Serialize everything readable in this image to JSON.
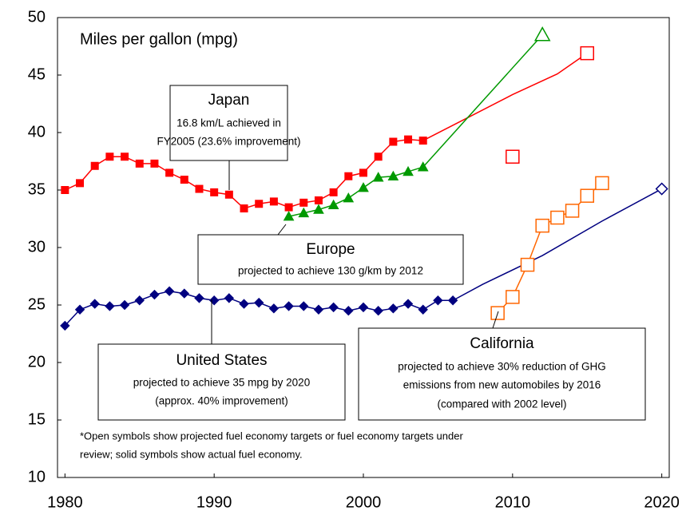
{
  "chart_data": {
    "type": "line",
    "ylabel": "Miles per gallon (mpg)",
    "xlim": [
      1979.5,
      2020.5
    ],
    "xticks": [
      1980,
      1990,
      2000,
      2010,
      2020
    ],
    "ylim": [
      10,
      50
    ],
    "yticks": [
      10,
      15,
      20,
      25,
      30,
      35,
      40,
      45,
      50
    ],
    "series": [
      {
        "color": "#ff0000",
        "marker": "square",
        "filled": true,
        "line": true,
        "x": [
          1980,
          1981,
          1982,
          1983,
          1984,
          1985,
          1986,
          1987,
          1988,
          1989,
          1990,
          1991,
          1992,
          1993,
          1994,
          1995,
          1996,
          1997,
          1998,
          1999,
          2000,
          2001,
          2002,
          2003,
          2004
        ],
        "values": [
          35.0,
          35.6,
          37.1,
          37.9,
          37.9,
          37.3,
          37.3,
          36.5,
          35.9,
          35.1,
          34.8,
          34.6,
          33.4,
          33.8,
          34.0,
          33.5,
          33.9,
          34.1,
          34.8,
          36.2,
          36.5,
          37.9,
          39.2,
          39.4,
          39.3
        ]
      },
      {
        "color": "#ff0000",
        "marker": "none",
        "filled": false,
        "line": true,
        "x": [
          2004,
          2007,
          2010,
          2013,
          2015
        ],
        "values": [
          39.3,
          41.3,
          43.3,
          45.1,
          46.9
        ]
      },
      {
        "color": "#ff0000",
        "marker": "square",
        "filled": false,
        "line": false,
        "x": [
          2010,
          2015
        ],
        "values": [
          37.9,
          46.9
        ]
      },
      {
        "color": "#009900",
        "marker": "triangle",
        "filled": true,
        "line": true,
        "x": [
          1995,
          1996,
          1997,
          1998,
          1999,
          2000,
          2001,
          2002,
          2003,
          2004
        ],
        "values": [
          32.7,
          33.0,
          33.3,
          33.7,
          34.3,
          35.2,
          36.1,
          36.2,
          36.6,
          37.0
        ]
      },
      {
        "color": "#009900",
        "marker": "none",
        "filled": false,
        "line": true,
        "x": [
          2004,
          2012
        ],
        "values": [
          37.0,
          48.5
        ]
      },
      {
        "color": "#009900",
        "marker": "triangle",
        "filled": false,
        "line": false,
        "x": [
          2012
        ],
        "values": [
          48.5
        ]
      },
      {
        "color": "#000080",
        "marker": "diamond",
        "filled": true,
        "line": true,
        "x": [
          1980,
          1981,
          1982,
          1983,
          1984,
          1985,
          1986,
          1987,
          1988,
          1989,
          1990,
          1991,
          1992,
          1993,
          1994,
          1995,
          1996,
          1997,
          1998,
          1999,
          2000,
          2001,
          2002,
          2003,
          2004,
          2005,
          2006
        ],
        "values": [
          23.2,
          24.6,
          25.1,
          24.9,
          25.0,
          25.4,
          25.9,
          26.2,
          26.0,
          25.6,
          25.4,
          25.6,
          25.1,
          25.2,
          24.7,
          24.9,
          24.9,
          24.6,
          24.8,
          24.5,
          24.8,
          24.5,
          24.7,
          25.1,
          24.6,
          25.4,
          25.4
        ]
      },
      {
        "color": "#000080",
        "marker": "none",
        "filled": false,
        "line": true,
        "x": [
          2006,
          2008,
          2012,
          2016,
          2020
        ],
        "values": [
          25.4,
          26.8,
          29.3,
          32.3,
          35.1
        ]
      },
      {
        "color": "#000080",
        "marker": "diamond",
        "filled": false,
        "line": false,
        "x": [
          2020
        ],
        "values": [
          35.1
        ]
      },
      {
        "color": "#ff6600",
        "marker": "square",
        "filled": false,
        "line": true,
        "x": [
          2009,
          2010,
          2011,
          2012,
          2013,
          2014,
          2015,
          2016
        ],
        "values": [
          24.3,
          25.7,
          28.5,
          31.9,
          32.6,
          33.2,
          34.5,
          35.6
        ]
      }
    ],
    "annotations": [
      {
        "title": "Japan",
        "lines": [
          "16.8 km/L achieved in",
          "FY2005 (23.6% improvement)"
        ]
      },
      {
        "title": "Europe",
        "lines": [
          "projected to achieve 130 g/km by 2012"
        ]
      },
      {
        "title": "United States",
        "lines": [
          "projected to achieve 35 mpg by 2020",
          "(approx. 40% improvement)"
        ]
      },
      {
        "title": "California",
        "lines": [
          "projected to achieve 30% reduction of GHG",
          "emissions from new automobiles by 2016",
          "(compared with 2002 level)"
        ]
      }
    ],
    "footnote": [
      "*Open symbols show projected fuel economy targets or fuel economy targets under",
      "review; solid symbols show actual fuel economy."
    ]
  }
}
